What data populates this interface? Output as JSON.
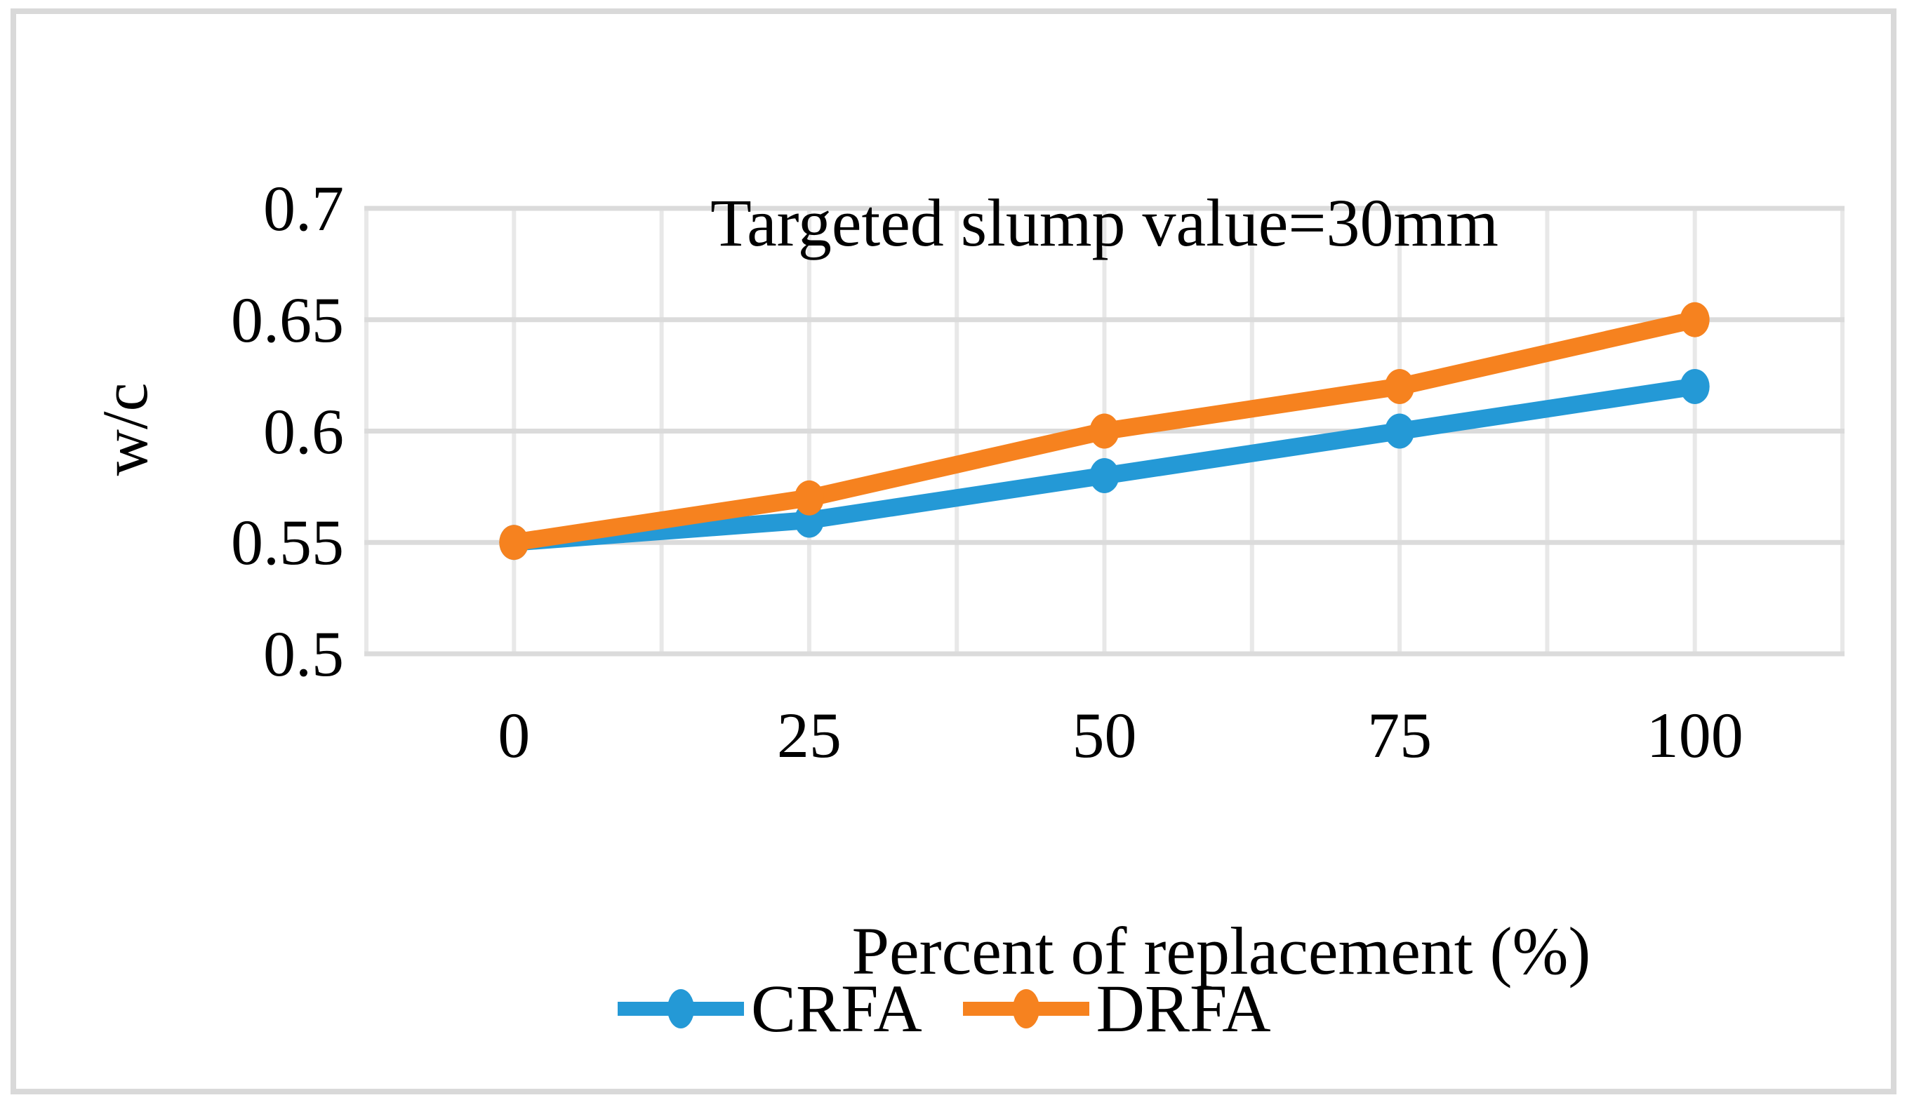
{
  "chart_data": {
    "type": "line",
    "title": "Targeted slump value=30mm",
    "xlabel": "Percent of replacement (%)",
    "ylabel": "w/c",
    "categories": [
      "0",
      "25",
      "50",
      "75",
      "100"
    ],
    "y_ticks": [
      0.5,
      0.55,
      0.6,
      0.65,
      0.7
    ],
    "y_tick_labels": [
      "0.5",
      "0.55",
      "0.6",
      "0.65",
      "0.7"
    ],
    "ylim": [
      0.5,
      0.7
    ],
    "grid": "on",
    "legend_position": "bottom",
    "series": [
      {
        "name": "CRFA",
        "color": "#2499D6",
        "values": [
          0.55,
          0.56,
          0.58,
          0.6,
          0.62
        ]
      },
      {
        "name": "DRFA",
        "color": "#F6821F",
        "values": [
          0.55,
          0.57,
          0.6,
          0.62,
          0.65
        ]
      }
    ]
  }
}
